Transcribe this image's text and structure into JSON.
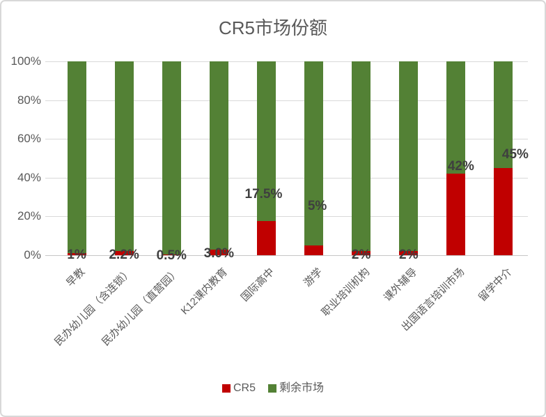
{
  "title": "CR5市场份额",
  "legend": {
    "items": [
      {
        "label": "CR5",
        "color": "#C00000"
      },
      {
        "label": "剩余市场",
        "color": "#538135"
      }
    ]
  },
  "chart_data": {
    "type": "bar",
    "stacked": true,
    "percent_stacked": true,
    "title": "CR5市场份额",
    "categories": [
      "早教",
      "民办幼儿园（含连锁）",
      "民办幼儿园（直营园）",
      "K12课内教育",
      "国际高中",
      "游学",
      "职业培训机构",
      "课外辅导",
      "出国语言培训市场",
      "留学中介"
    ],
    "series": [
      {
        "name": "CR5",
        "color": "#C00000",
        "values": [
          1,
          2.2,
          0.5,
          3.0,
          17.5,
          5,
          2,
          2,
          42,
          45
        ]
      },
      {
        "name": "剩余市场",
        "color": "#538135",
        "values": [
          99,
          97.8,
          99.5,
          97.0,
          82.5,
          95,
          98,
          98,
          58,
          55
        ]
      }
    ],
    "data_labels": [
      "1%",
      "2.2%",
      "0.5%",
      "3.0%",
      "17.5%",
      "5%",
      "2%",
      "2%",
      "42%",
      "45%"
    ],
    "y_ticks": [
      "0%",
      "20%",
      "40%",
      "60%",
      "80%",
      "100%"
    ],
    "ylim": [
      0,
      100
    ],
    "grid": true,
    "gridline_color": "#d9d9d9",
    "axis_text_color": "#595959",
    "data_label_color": "#3f3f3f",
    "legend_position": "bottom"
  }
}
